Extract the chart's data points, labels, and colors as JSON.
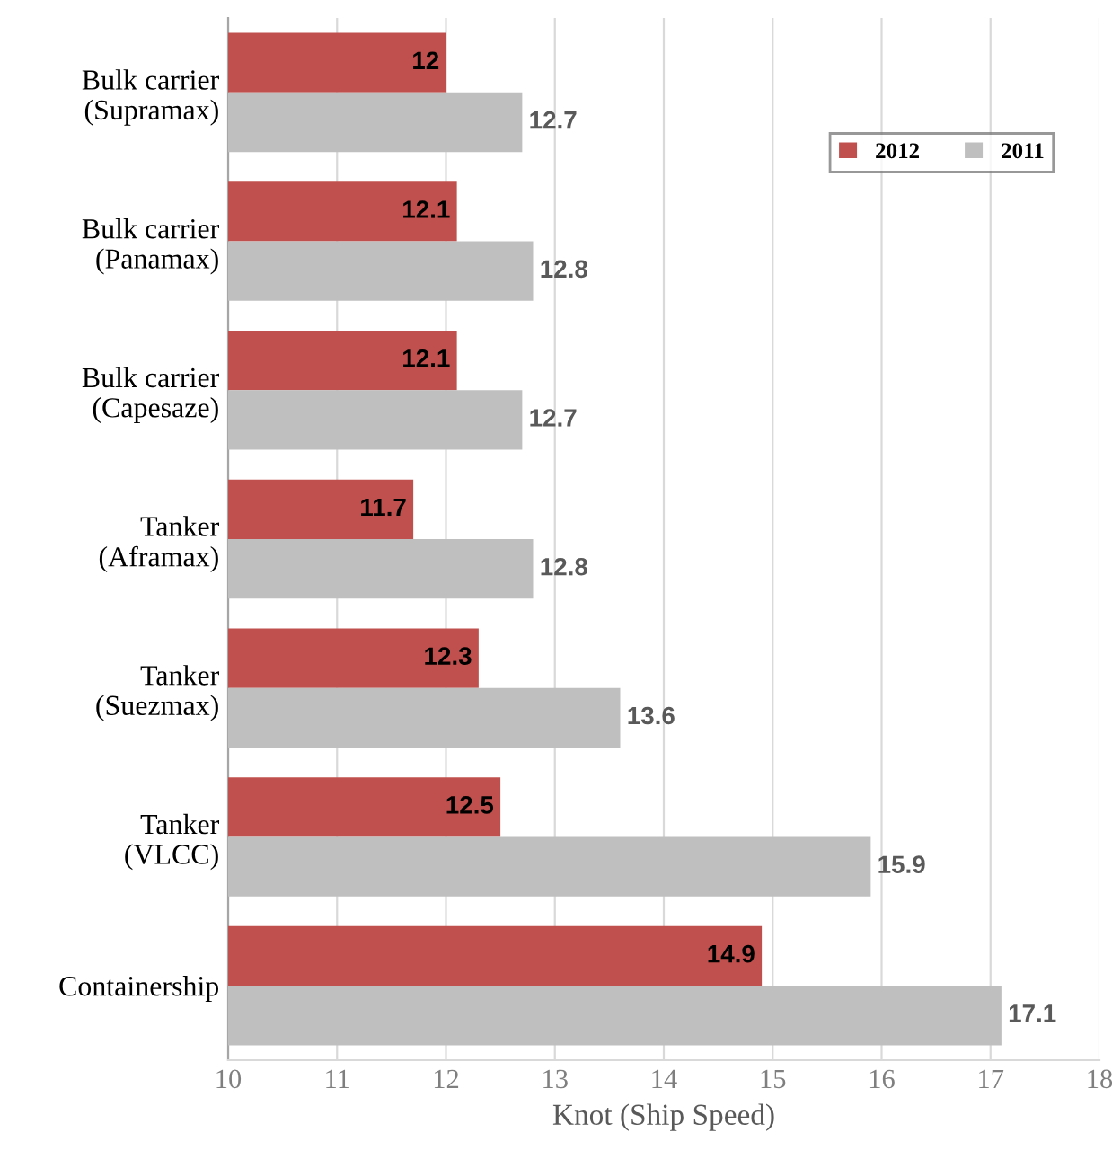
{
  "chart_data": {
    "type": "bar",
    "orientation": "horizontal",
    "xlabel": "Knot (Ship Speed)",
    "categories": [
      "Bulk carrier\n(Supramax)",
      "Bulk carrier\n(Panamax)",
      "Bulk carrier\n(Capesaze)",
      "Tanker\n(Aframax)",
      "Tanker\n(Suezmax)",
      "Tanker\n(VLCC)",
      "Containership"
    ],
    "series": [
      {
        "name": "2012",
        "color": "#c0504d",
        "values": [
          12,
          12.1,
          12.1,
          11.7,
          12.3,
          12.5,
          14.9
        ]
      },
      {
        "name": "2011",
        "color": "#bfbfbf",
        "values": [
          12.7,
          12.8,
          12.7,
          12.8,
          13.6,
          15.9,
          17.1
        ]
      }
    ],
    "xlim": [
      10,
      18
    ],
    "xticks": [
      10,
      11,
      12,
      13,
      14,
      15,
      16,
      17,
      18
    ],
    "grid": "x",
    "legend": "top right",
    "data_labels": true
  }
}
